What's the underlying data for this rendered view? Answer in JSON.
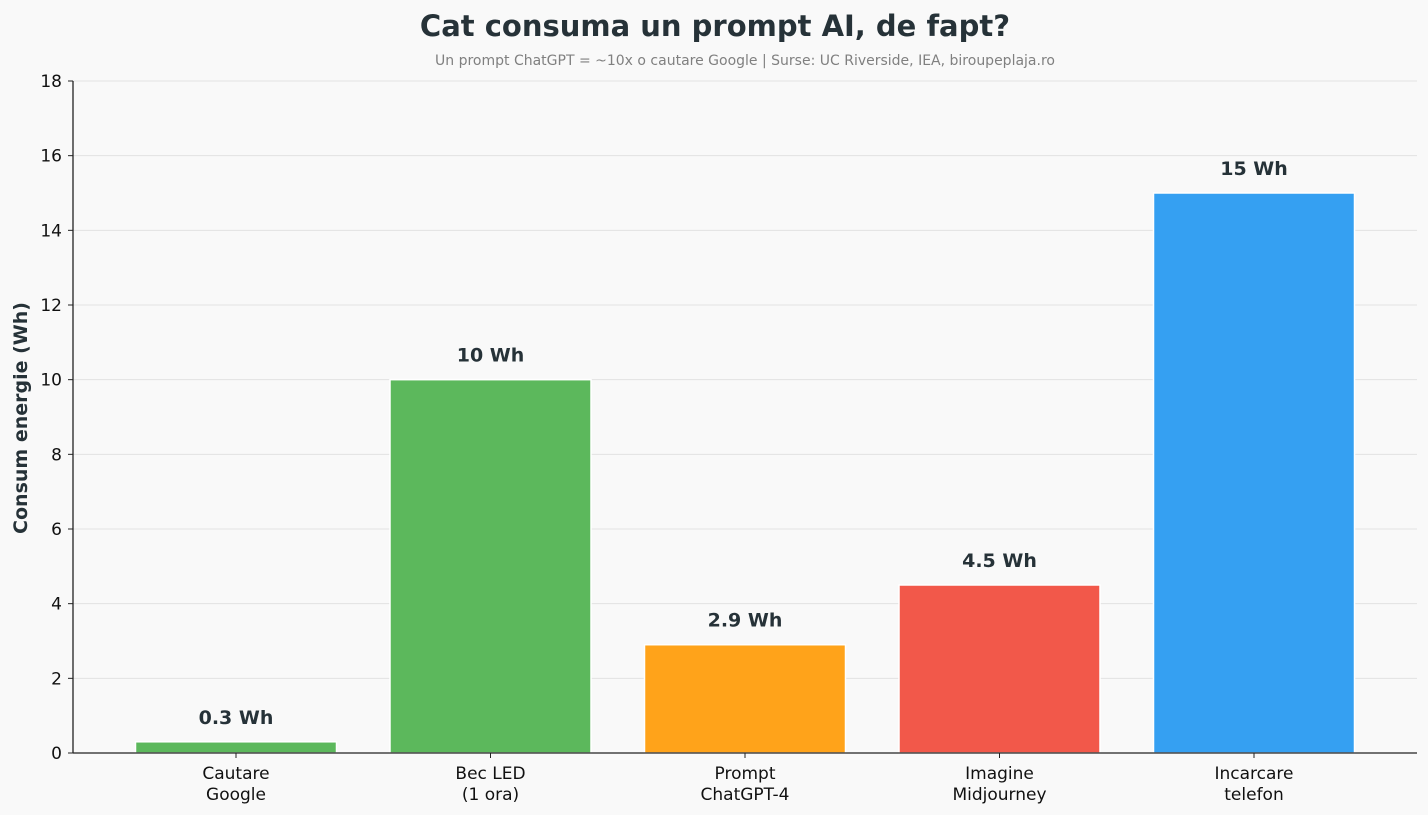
{
  "chart_data": {
    "type": "bar",
    "title": "Cat consuma un prompt AI, de fapt?",
    "subtitle": "Un prompt ChatGPT = ~10x o cautare Google | Surse: UC Riverside, IEA, biroupeplaja.ro",
    "ylabel": "Consum energie (Wh)",
    "xlabel": "",
    "ylim": [
      0,
      18
    ],
    "yticks": [
      0,
      2,
      4,
      6,
      8,
      10,
      12,
      14,
      16,
      18
    ],
    "grid": "horizontal",
    "categories": [
      [
        "Cautare",
        "Google"
      ],
      [
        "Bec LED",
        "(1 ora)"
      ],
      [
        "Prompt",
        "ChatGPT-4"
      ],
      [
        "Imagine",
        "Midjourney"
      ],
      [
        "Incarcare",
        "telefon"
      ]
    ],
    "values": [
      0.3,
      10,
      2.9,
      4.5,
      15
    ],
    "data_labels": [
      "0.3 Wh",
      "10 Wh",
      "2.9 Wh",
      "4.5 Wh",
      "15 Wh"
    ],
    "colors": [
      "#5cb85c",
      "#5cb85c",
      "#ffa31a",
      "#f2584a",
      "#35a0f2"
    ]
  }
}
